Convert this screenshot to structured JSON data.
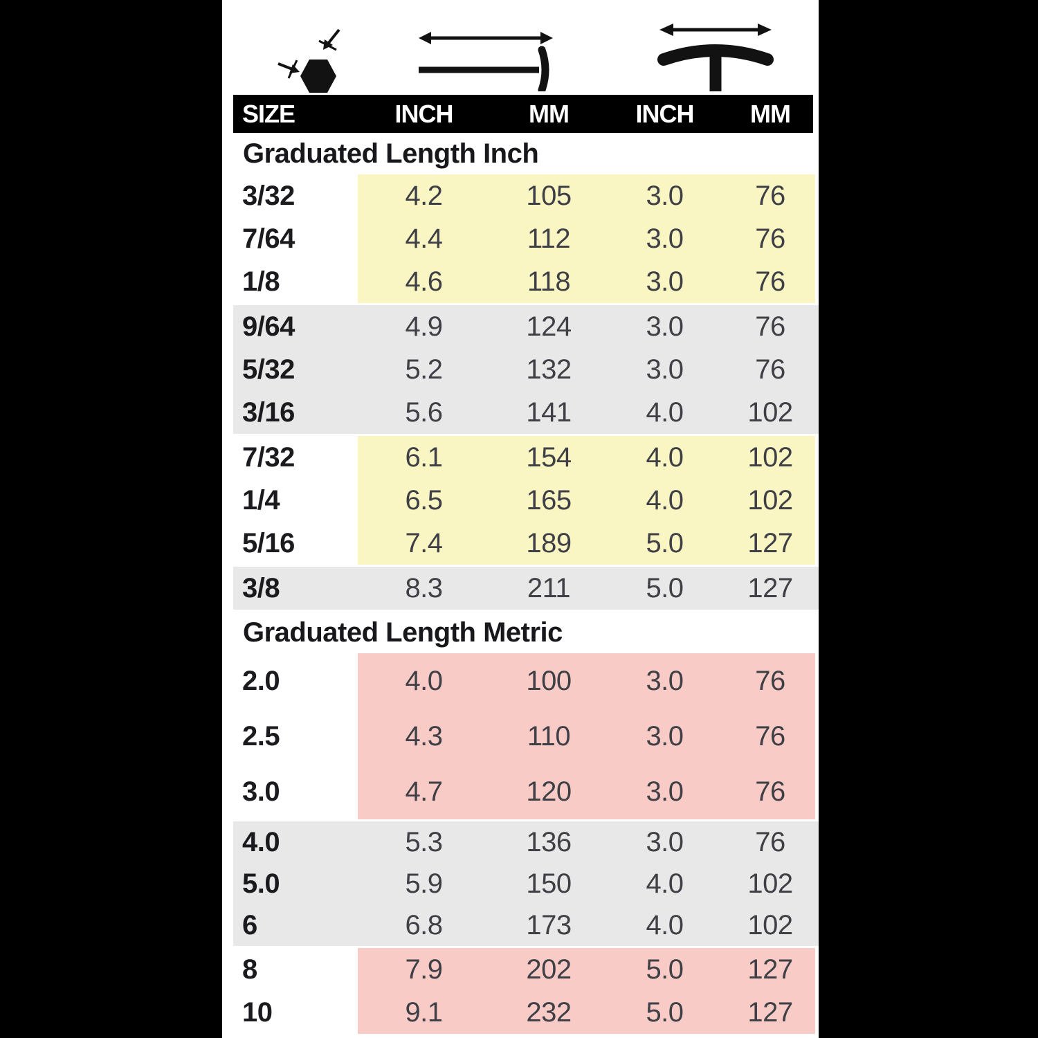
{
  "palette": {
    "yellow": "#faf6c3",
    "pink": "#f9cbc6",
    "gray": "#e8e8e8",
    "header_bg": "#000000",
    "header_text": "#ffffff",
    "frame": "#000000"
  },
  "icons": {
    "hex": "hex-across-flats-icon",
    "arm": "arm-length-icon",
    "handle": "t-handle-length-icon"
  },
  "header": {
    "columns": [
      "SIZE",
      "INCH",
      "MM",
      "INCH",
      "MM"
    ]
  },
  "sections": [
    {
      "title": "Graduated Length Inch",
      "row_groups": [
        {
          "color": "yellow",
          "band": "partial",
          "row_style": "normal",
          "rows": [
            {
              "size": "3/32",
              "values": [
                "4.2",
                "105",
                "3.0",
                "76"
              ]
            },
            {
              "size": "7/64",
              "values": [
                "4.4",
                "112",
                "3.0",
                "76"
              ]
            },
            {
              "size": "1/8",
              "values": [
                "4.6",
                "118",
                "3.0",
                "76"
              ]
            }
          ]
        },
        {
          "color": "gray",
          "band": "full",
          "row_style": "normal",
          "rows": [
            {
              "size": "9/64",
              "values": [
                "4.9",
                "124",
                "3.0",
                "76"
              ]
            },
            {
              "size": "5/32",
              "values": [
                "5.2",
                "132",
                "3.0",
                "76"
              ]
            },
            {
              "size": "3/16",
              "values": [
                "5.6",
                "141",
                "4.0",
                "102"
              ]
            }
          ]
        },
        {
          "color": "yellow",
          "band": "partial",
          "row_style": "normal",
          "rows": [
            {
              "size": "7/32",
              "values": [
                "6.1",
                "154",
                "4.0",
                "102"
              ]
            },
            {
              "size": "1/4",
              "values": [
                "6.5",
                "165",
                "4.0",
                "102"
              ]
            },
            {
              "size": "5/16",
              "values": [
                "7.4",
                "189",
                "5.0",
                "127"
              ]
            }
          ]
        },
        {
          "color": "gray",
          "band": "full",
          "row_style": "normal",
          "rows": [
            {
              "size": "3/8",
              "values": [
                "8.3",
                "211",
                "5.0",
                "127"
              ]
            }
          ]
        }
      ]
    },
    {
      "title": "Graduated Length Metric",
      "row_groups": [
        {
          "color": "pink",
          "band": "partial",
          "row_style": "tall",
          "rows": [
            {
              "size": "2.0",
              "values": [
                "4.0",
                "100",
                "3.0",
                "76"
              ]
            },
            {
              "size": "2.5",
              "values": [
                "4.3",
                "110",
                "3.0",
                "76"
              ]
            },
            {
              "size": "3.0",
              "values": [
                "4.7",
                "120",
                "3.0",
                "76"
              ]
            }
          ]
        },
        {
          "color": "gray",
          "band": "full",
          "row_style": "short",
          "rows": [
            {
              "size": "4.0",
              "values": [
                "5.3",
                "136",
                "3.0",
                "76"
              ]
            },
            {
              "size": "5.0",
              "values": [
                "5.9",
                "150",
                "4.0",
                "102"
              ]
            },
            {
              "size": "6",
              "values": [
                "6.8",
                "173",
                "4.0",
                "102"
              ]
            }
          ]
        },
        {
          "color": "pink",
          "band": "partial",
          "row_style": "normal",
          "rows": [
            {
              "size": "8",
              "values": [
                "7.9",
                "202",
                "5.0",
                "127"
              ]
            },
            {
              "size": "10",
              "values": [
                "9.1",
                "232",
                "5.0",
                "127"
              ]
            }
          ]
        }
      ]
    }
  ]
}
